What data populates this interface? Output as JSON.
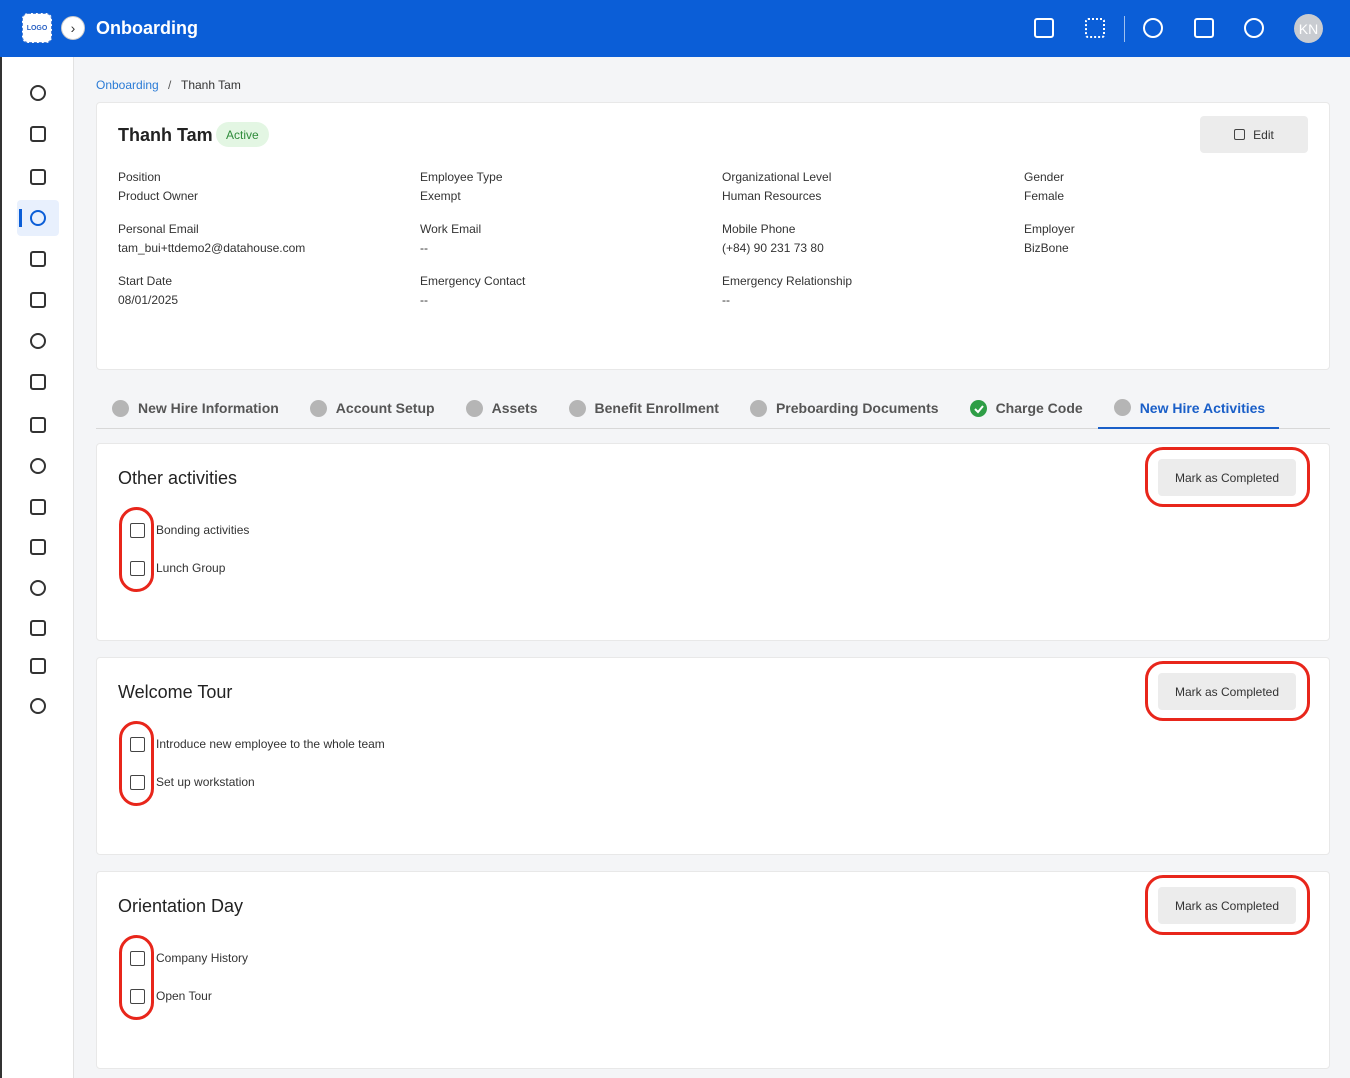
{
  "header": {
    "logo": "LOGO",
    "title": "Onboarding",
    "avatar": "KN"
  },
  "breadcrumb": {
    "items": [
      "Onboarding",
      "Thanh Tam"
    ],
    "separator": "/"
  },
  "profile": {
    "name": "Thanh Tam",
    "status": "Active",
    "edit": "Edit",
    "fields": [
      {
        "label": "Position",
        "value": "Product Owner"
      },
      {
        "label": "Employee Type",
        "value": "Exempt"
      },
      {
        "label": "Organizational Level",
        "value": "Human Resources"
      },
      {
        "label": "Gender",
        "value": "Female"
      },
      {
        "label": "Personal Email",
        "value": "tam_bui+ttdemo2@datahouse.com"
      },
      {
        "label": "Work Email",
        "value": "--"
      },
      {
        "label": "Mobile Phone",
        "value": "(+84) 90 231 73 80"
      },
      {
        "label": "Employer",
        "value": "BizBone"
      },
      {
        "label": "Start Date",
        "value": "08/01/2025"
      },
      {
        "label": "Emergency Contact",
        "value": "--"
      },
      {
        "label": "Emergency Relationship",
        "value": "--"
      }
    ]
  },
  "tabs": [
    {
      "label": "New Hire Information",
      "state": "pending",
      "active": false
    },
    {
      "label": "Account Setup",
      "state": "pending",
      "active": false
    },
    {
      "label": "Assets",
      "state": "pending",
      "active": false
    },
    {
      "label": "Benefit Enrollment",
      "state": "pending",
      "active": false
    },
    {
      "label": "Preboarding Documents",
      "state": "pending",
      "active": false
    },
    {
      "label": "Charge Code",
      "state": "done",
      "active": false
    },
    {
      "label": "New Hire Activities",
      "state": "pending",
      "active": true
    }
  ],
  "sections": [
    {
      "title": "Other activities",
      "button": "Mark as Completed",
      "items": [
        "Bonding activities",
        "Lunch Group"
      ]
    },
    {
      "title": "Welcome Tour",
      "button": "Mark as Completed",
      "items": [
        "Introduce new employee to the whole team",
        "Set up workstation"
      ]
    },
    {
      "title": "Orientation Day",
      "button": "Mark as Completed",
      "items": [
        "Company History",
        "Open Tour"
      ]
    }
  ]
}
